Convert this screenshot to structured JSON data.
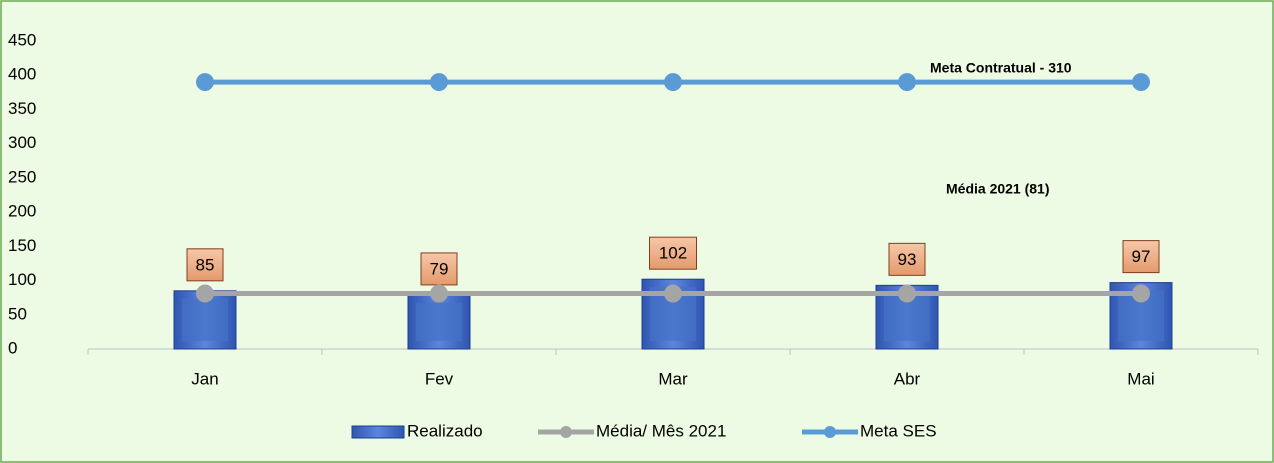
{
  "chart_data": {
    "type": "bar",
    "categories": [
      "Jan",
      "Fev",
      "Mar",
      "Abr",
      "Mai"
    ],
    "series": [
      {
        "name": "Realizado",
        "type": "bar",
        "color": "#4472c4",
        "values": [
          85,
          79,
          102,
          93,
          97
        ]
      },
      {
        "name": "Média/ Mês 2021",
        "type": "line",
        "color": "#a5a5a5",
        "values": [
          81,
          81,
          81,
          81,
          81
        ]
      },
      {
        "name": "Meta SES",
        "type": "line",
        "color": "#5b9bd5",
        "values": [
          390,
          390,
          390,
          390,
          390
        ]
      }
    ],
    "annotations": [
      "Meta Contratual - 310",
      "Média 2021 (81)"
    ],
    "ylim": [
      0,
      450
    ],
    "yticks": [
      0,
      50,
      100,
      150,
      200,
      250,
      300,
      350,
      400,
      450
    ],
    "legend": "bottom"
  }
}
